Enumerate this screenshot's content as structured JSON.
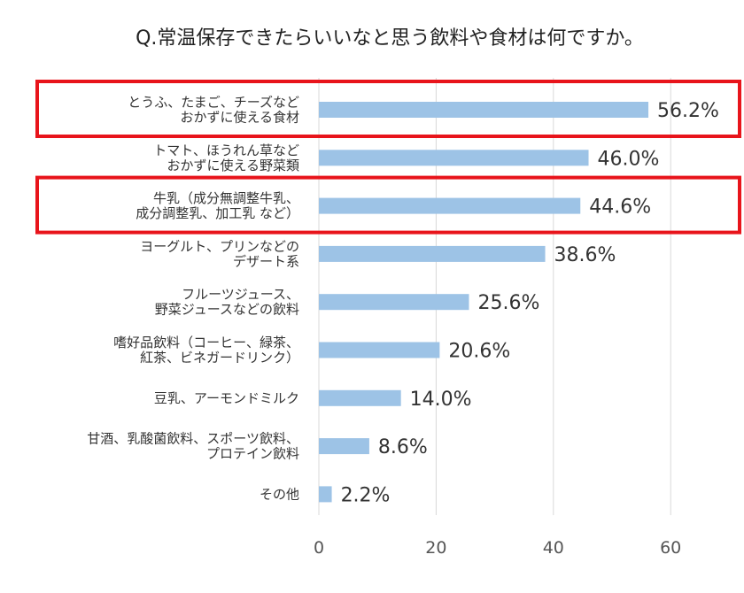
{
  "chart_data": {
    "type": "bar",
    "orientation": "horizontal",
    "title": "Q.常温保存できたらいいなと思う飲料や食材は何ですか。",
    "categories": [
      [
        "とうふ、たまご、チーズなど",
        "おかずに使える食材"
      ],
      [
        "トマト、ほうれん草など",
        "おかずに使える野菜類"
      ],
      [
        "牛乳（成分無調整牛乳、",
        "成分調整乳、加工乳 など）"
      ],
      [
        "ヨーグルト、プリンなどの",
        "デザート系"
      ],
      [
        "フルーツジュース、",
        "野菜ジュースなどの飲料"
      ],
      [
        "嗜好品飲料（コーヒー、緑茶、",
        "紅茶、ビネガードリンク）"
      ],
      [
        "豆乳、アーモンドミルク"
      ],
      [
        "甘酒、乳酸菌飲料、スポーツ飲料、",
        "プロテイン飲料"
      ],
      [
        "その他"
      ]
    ],
    "values": [
      56.2,
      46.0,
      44.6,
      38.6,
      25.6,
      20.6,
      14.0,
      8.6,
      2.2
    ],
    "value_labels": [
      "56.2%",
      "46.0%",
      "44.6%",
      "38.6%",
      "25.6%",
      "20.6%",
      "14.0%",
      "8.6%",
      "2.2%"
    ],
    "xlim": [
      0,
      70
    ],
    "xticks": [
      0,
      20,
      40,
      60
    ],
    "xtick_labels": [
      "0",
      "20",
      "40",
      "60"
    ],
    "grid": "vertical",
    "highlighted_categories": [
      0,
      2
    ],
    "colors": {
      "bar": "#9dc3e6",
      "highlight": "#e8141b",
      "grid": "#d9d9d9"
    }
  }
}
